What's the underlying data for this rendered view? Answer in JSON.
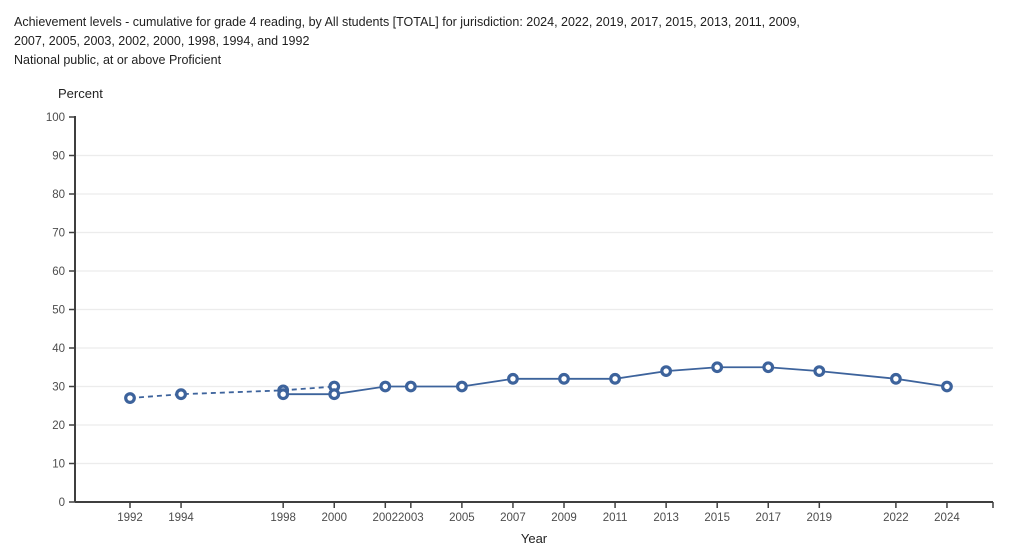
{
  "header": {
    "title_line1": "Achievement levels - cumulative for grade 4 reading, by All students [TOTAL] for jurisdiction: 2024, 2022, 2019, 2017, 2015, 2013, 2011, 2009,",
    "title_line2": "2007, 2005, 2003, 2002, 2000, 1998, 1994, and 1992",
    "subtitle": "National public, at or above Proficient"
  },
  "chart_data": {
    "type": "line",
    "xlabel": "Year",
    "ylabel": "Percent",
    "ylim": [
      0,
      100
    ],
    "ytick_step": 10,
    "grid": true,
    "legend": "none",
    "x_ticks": [
      1992,
      1994,
      1998,
      2000,
      2002,
      2003,
      2005,
      2007,
      2009,
      2011,
      2013,
      2015,
      2017,
      2019,
      2022,
      2024
    ],
    "series": [
      {
        "name": "dashed",
        "style": "dashed",
        "points": [
          [
            1992,
            27
          ],
          [
            1994,
            28
          ],
          [
            1998,
            29
          ],
          [
            2000,
            30
          ]
        ]
      },
      {
        "name": "solid",
        "style": "solid",
        "points": [
          [
            1998,
            28
          ],
          [
            2000,
            28
          ],
          [
            2002,
            30
          ],
          [
            2003,
            30
          ],
          [
            2005,
            30
          ],
          [
            2007,
            32
          ],
          [
            2009,
            32
          ],
          [
            2011,
            32
          ],
          [
            2013,
            34
          ],
          [
            2015,
            35
          ],
          [
            2017,
            35
          ],
          [
            2019,
            34
          ],
          [
            2022,
            32
          ],
          [
            2024,
            30
          ]
        ]
      }
    ],
    "colors": {
      "line": "#3d639c",
      "axis": "#3f3f3f",
      "grid": "#ececec",
      "tick_label": "#4d4d4d",
      "axis_title": "#222222",
      "marker_fill": "#ffffff"
    }
  }
}
